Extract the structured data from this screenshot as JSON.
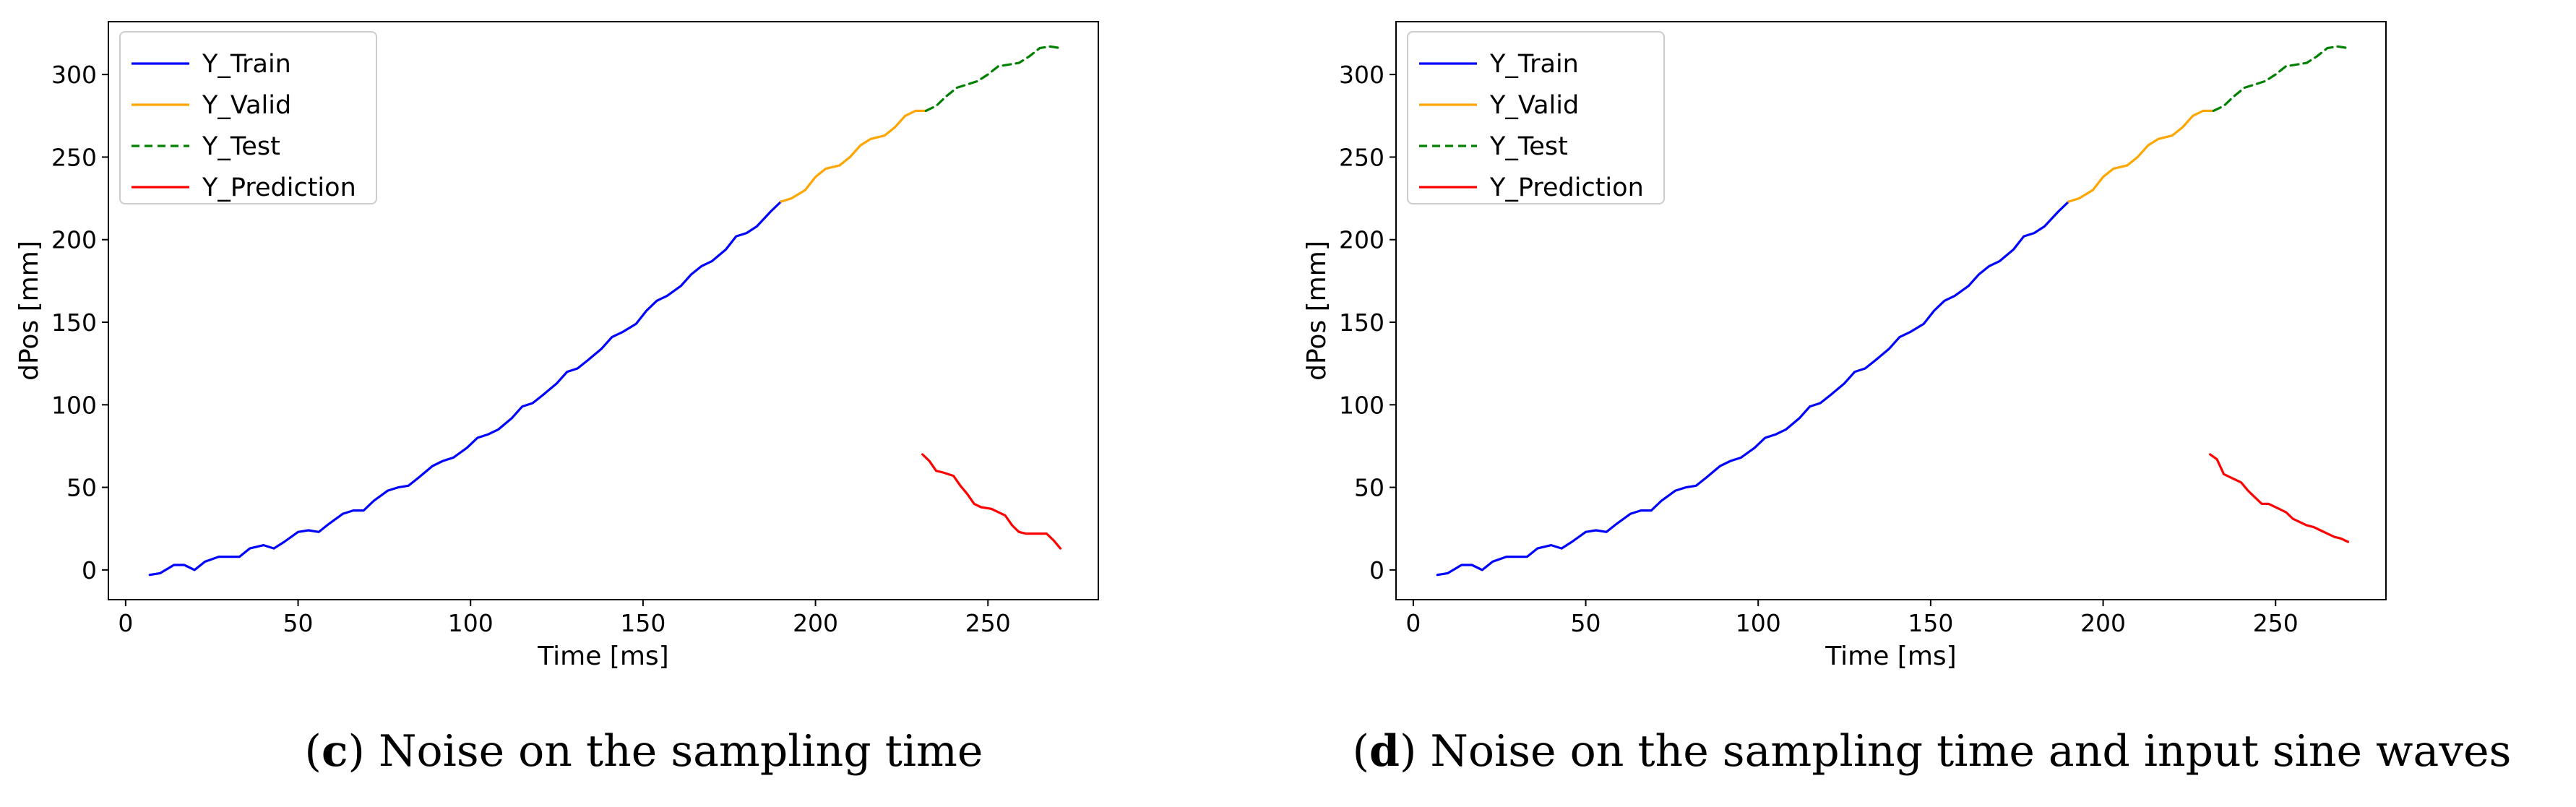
{
  "chart_data": [
    {
      "id": "c",
      "type": "line",
      "title": "",
      "xlabel": "Time [ms]",
      "ylabel": "dPos [mm]",
      "xlim": [
        -5,
        282
      ],
      "ylim": [
        -18,
        332
      ],
      "xticks": [
        0,
        50,
        100,
        150,
        200,
        250
      ],
      "yticks": [
        0,
        50,
        100,
        150,
        200,
        250,
        300
      ],
      "legend_position": "top-left",
      "caption": {
        "letter": "c",
        "text": "Noise on the sampling time"
      },
      "series": [
        {
          "name": "Y_Train",
          "color": "#0000ff",
          "dash": "solid",
          "x": [
            7,
            10,
            14,
            17,
            20,
            23,
            27,
            30,
            33,
            36,
            40,
            43,
            46,
            50,
            53,
            56,
            59,
            63,
            66,
            69,
            72,
            76,
            79,
            82,
            85,
            89,
            92,
            95,
            99,
            102,
            105,
            108,
            112,
            115,
            118,
            121,
            125,
            128,
            131,
            134,
            138,
            141,
            144,
            148,
            151,
            154,
            157,
            161,
            164,
            167,
            170,
            174,
            177,
            180,
            183,
            187,
            190
          ],
          "y": [
            -3,
            -2,
            3,
            3,
            0,
            5,
            8,
            8,
            8,
            13,
            15,
            13,
            17,
            23,
            24,
            23,
            28,
            34,
            36,
            36,
            42,
            48,
            50,
            51,
            56,
            63,
            66,
            68,
            74,
            80,
            82,
            85,
            92,
            99,
            101,
            106,
            113,
            120,
            122,
            127,
            134,
            141,
            144,
            149,
            157,
            163,
            166,
            172,
            179,
            184,
            187,
            194,
            202,
            204,
            208,
            217,
            223
          ]
        },
        {
          "name": "Y_Valid",
          "color": "#ffa500",
          "dash": "solid",
          "x": [
            190,
            193,
            197,
            200,
            203,
            207,
            210,
            213,
            216,
            220,
            223,
            226,
            229,
            232
          ],
          "y": [
            223,
            225,
            230,
            238,
            243,
            245,
            250,
            257,
            261,
            263,
            268,
            275,
            278,
            278
          ]
        },
        {
          "name": "Y_Test",
          "color": "#008000",
          "dash": "dashed",
          "x": [
            232,
            235,
            238,
            241,
            244,
            247,
            250,
            253,
            256,
            259,
            262,
            265,
            268,
            271
          ],
          "y": [
            278,
            281,
            287,
            292,
            294,
            296,
            300,
            305,
            306,
            307,
            311,
            316,
            317,
            316
          ]
        },
        {
          "name": "Y_Prediction",
          "color": "#ff0000",
          "dash": "solid",
          "x": [
            231,
            233,
            235,
            237,
            240,
            242,
            244,
            246,
            248,
            251,
            253,
            255,
            257,
            259,
            261,
            263,
            265,
            267,
            269,
            271
          ],
          "y": [
            70,
            66,
            60,
            59,
            57,
            51,
            46,
            40,
            38,
            37,
            35,
            33,
            27,
            23,
            22,
            22,
            22,
            22,
            18,
            13
          ]
        }
      ]
    },
    {
      "id": "d",
      "type": "line",
      "title": "",
      "xlabel": "Time [ms]",
      "ylabel": "dPos [mm]",
      "xlim": [
        -5,
        282
      ],
      "ylim": [
        -18,
        332
      ],
      "xticks": [
        0,
        50,
        100,
        150,
        200,
        250
      ],
      "yticks": [
        0,
        50,
        100,
        150,
        200,
        250,
        300
      ],
      "legend_position": "top-left",
      "caption": {
        "letter": "d",
        "text": "Noise on the sampling time and input sine waves"
      },
      "series": [
        {
          "name": "Y_Train",
          "color": "#0000ff",
          "dash": "solid",
          "x": [
            7,
            10,
            14,
            17,
            20,
            23,
            27,
            30,
            33,
            36,
            40,
            43,
            46,
            50,
            53,
            56,
            59,
            63,
            66,
            69,
            72,
            76,
            79,
            82,
            85,
            89,
            92,
            95,
            99,
            102,
            105,
            108,
            112,
            115,
            118,
            121,
            125,
            128,
            131,
            134,
            138,
            141,
            144,
            148,
            151,
            154,
            157,
            161,
            164,
            167,
            170,
            174,
            177,
            180,
            183,
            187,
            190
          ],
          "y": [
            -3,
            -2,
            3,
            3,
            0,
            5,
            8,
            8,
            8,
            13,
            15,
            13,
            17,
            23,
            24,
            23,
            28,
            34,
            36,
            36,
            42,
            48,
            50,
            51,
            56,
            63,
            66,
            68,
            74,
            80,
            82,
            85,
            92,
            99,
            101,
            106,
            113,
            120,
            122,
            127,
            134,
            141,
            144,
            149,
            157,
            163,
            166,
            172,
            179,
            184,
            187,
            194,
            202,
            204,
            208,
            217,
            223
          ]
        },
        {
          "name": "Y_Valid",
          "color": "#ffa500",
          "dash": "solid",
          "x": [
            190,
            193,
            197,
            200,
            203,
            207,
            210,
            213,
            216,
            220,
            223,
            226,
            229,
            232
          ],
          "y": [
            223,
            225,
            230,
            238,
            243,
            245,
            250,
            257,
            261,
            263,
            268,
            275,
            278,
            278
          ]
        },
        {
          "name": "Y_Test",
          "color": "#008000",
          "dash": "dashed",
          "x": [
            232,
            235,
            238,
            241,
            244,
            247,
            250,
            253,
            256,
            259,
            262,
            265,
            268,
            271
          ],
          "y": [
            278,
            281,
            287,
            292,
            294,
            296,
            300,
            305,
            306,
            307,
            311,
            316,
            317,
            316
          ]
        },
        {
          "name": "Y_Prediction",
          "color": "#ff0000",
          "dash": "solid",
          "x": [
            231,
            233,
            235,
            237,
            240,
            242,
            244,
            246,
            248,
            251,
            253,
            255,
            257,
            259,
            261,
            263,
            265,
            267,
            269,
            271
          ],
          "y": [
            70,
            67,
            58,
            56,
            53,
            48,
            44,
            40,
            40,
            37,
            35,
            31,
            29,
            27,
            26,
            24,
            22,
            20,
            19,
            17
          ]
        }
      ]
    }
  ]
}
